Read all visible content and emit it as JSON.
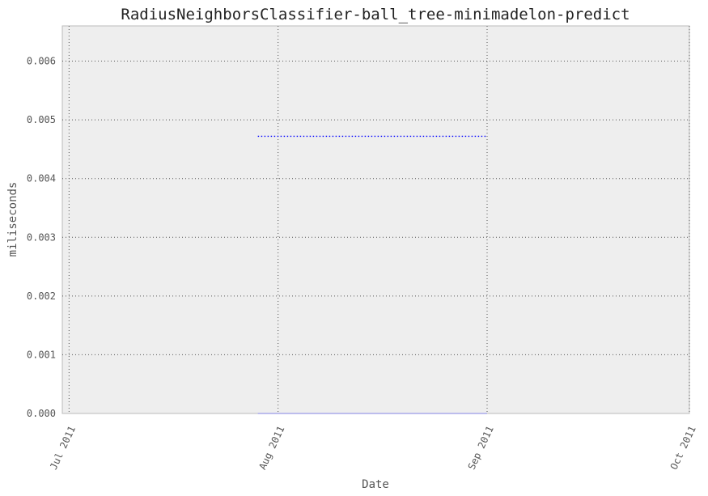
{
  "chart_data": {
    "type": "line",
    "title": "RadiusNeighborsClassifier-ball_tree-minimadelon-predict",
    "xlabel": "Date",
    "ylabel": "miliseconds",
    "x_range": [
      "2011-06-30",
      "2011-10-01"
    ],
    "y_range": [
      0,
      0.0066
    ],
    "y_ticks": [
      0.0,
      0.001,
      0.002,
      0.003,
      0.004,
      0.005,
      0.006
    ],
    "y_tick_labels": [
      "0.000",
      "0.001",
      "0.002",
      "0.003",
      "0.004",
      "0.005",
      "0.006"
    ],
    "x_ticks": [
      "2011-07-01",
      "2011-08-01",
      "2011-09-01",
      "2011-10-01"
    ],
    "x_tick_labels": [
      "Jul 2011",
      "Aug 2011",
      "Sep 2011",
      "Oct 2011"
    ],
    "grid": true,
    "series": [
      {
        "x": [
          "2011-07-29",
          "2011-09-01"
        ],
        "values": [
          0.00472,
          0.00472
        ],
        "color": "#0000ff",
        "style": "dotted"
      },
      {
        "x": [
          "2011-07-29",
          "2011-09-01"
        ],
        "values": [
          0.0,
          0.0
        ],
        "color": "#9a9ae8",
        "style": "solid"
      }
    ],
    "colors": {
      "plot_bg": "#eeeeee",
      "frame": "#bbbbbb",
      "grid": "#555555"
    }
  }
}
